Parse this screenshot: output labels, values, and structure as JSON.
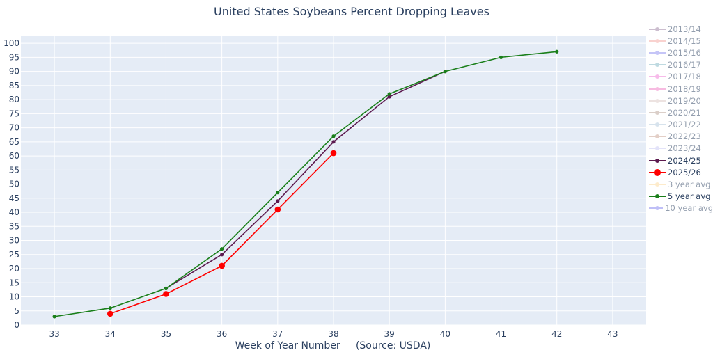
{
  "chart_data": {
    "type": "line",
    "title": "United States Soybeans Percent Dropping Leaves",
    "xlabel": "Week of Year Number     (Source: USDA)",
    "ylabel": "",
    "xlim": [
      32.4,
      43.6
    ],
    "ylim": [
      0,
      102.5
    ],
    "x_ticks": [
      33,
      34,
      35,
      36,
      37,
      38,
      39,
      40,
      41,
      42,
      43
    ],
    "y_ticks": [
      0,
      5,
      10,
      15,
      20,
      25,
      30,
      35,
      40,
      45,
      50,
      55,
      60,
      65,
      70,
      75,
      80,
      85,
      90,
      95,
      100
    ],
    "grid": true,
    "plot_bgcolor": "#e5ecf6",
    "legend_position": "right",
    "series": [
      {
        "name": "2013/14",
        "color": "#9b7fa0",
        "visible": false,
        "x": [],
        "y": []
      },
      {
        "name": "2014/15",
        "color": "#f4a6a0",
        "visible": false,
        "x": [],
        "y": []
      },
      {
        "name": "2015/16",
        "color": "#8c8cf0",
        "visible": false,
        "x": [],
        "y": []
      },
      {
        "name": "2016/17",
        "color": "#80b7c4",
        "visible": false,
        "x": [],
        "y": []
      },
      {
        "name": "2017/18",
        "color": "#f07ad6",
        "visible": false,
        "x": [],
        "y": []
      },
      {
        "name": "2018/19",
        "color": "#f07ac4",
        "visible": false,
        "x": [],
        "y": []
      },
      {
        "name": "2019/20",
        "color": "#dcc8c4",
        "visible": false,
        "x": [],
        "y": []
      },
      {
        "name": "2020/21",
        "color": "#b8a094",
        "visible": false,
        "x": [],
        "y": []
      },
      {
        "name": "2021/22",
        "color": "#b0c8dc",
        "visible": false,
        "x": [],
        "y": []
      },
      {
        "name": "2022/23",
        "color": "#c8a090",
        "visible": false,
        "x": [],
        "y": []
      },
      {
        "name": "2023/24",
        "color": "#c8c8f4",
        "visible": false,
        "x": [],
        "y": []
      },
      {
        "name": "2024/25",
        "color": "#5c1a4f",
        "visible": true,
        "marker": "small",
        "x": [
          35,
          36,
          37,
          38,
          39,
          40
        ],
        "y": [
          13,
          25,
          44,
          65,
          81,
          90
        ]
      },
      {
        "name": "2025/26",
        "color": "#ff0000",
        "visible": true,
        "marker": "large",
        "x": [
          34,
          35,
          36,
          37,
          38
        ],
        "y": [
          4,
          11,
          21,
          41,
          61
        ]
      },
      {
        "name": "3 year avg",
        "color": "#fcd898",
        "visible": false,
        "x": [],
        "y": []
      },
      {
        "name": "5 year avg",
        "color": "#1a7f1a",
        "visible": true,
        "marker": "small",
        "x": [
          33,
          34,
          35,
          36,
          37,
          38,
          39,
          40,
          41,
          42
        ],
        "y": [
          3,
          6,
          13,
          27,
          47,
          67,
          82,
          90,
          95,
          97
        ]
      },
      {
        "name": "10 year avg",
        "color": "#8080f0",
        "visible": false,
        "x": [],
        "y": []
      }
    ]
  }
}
